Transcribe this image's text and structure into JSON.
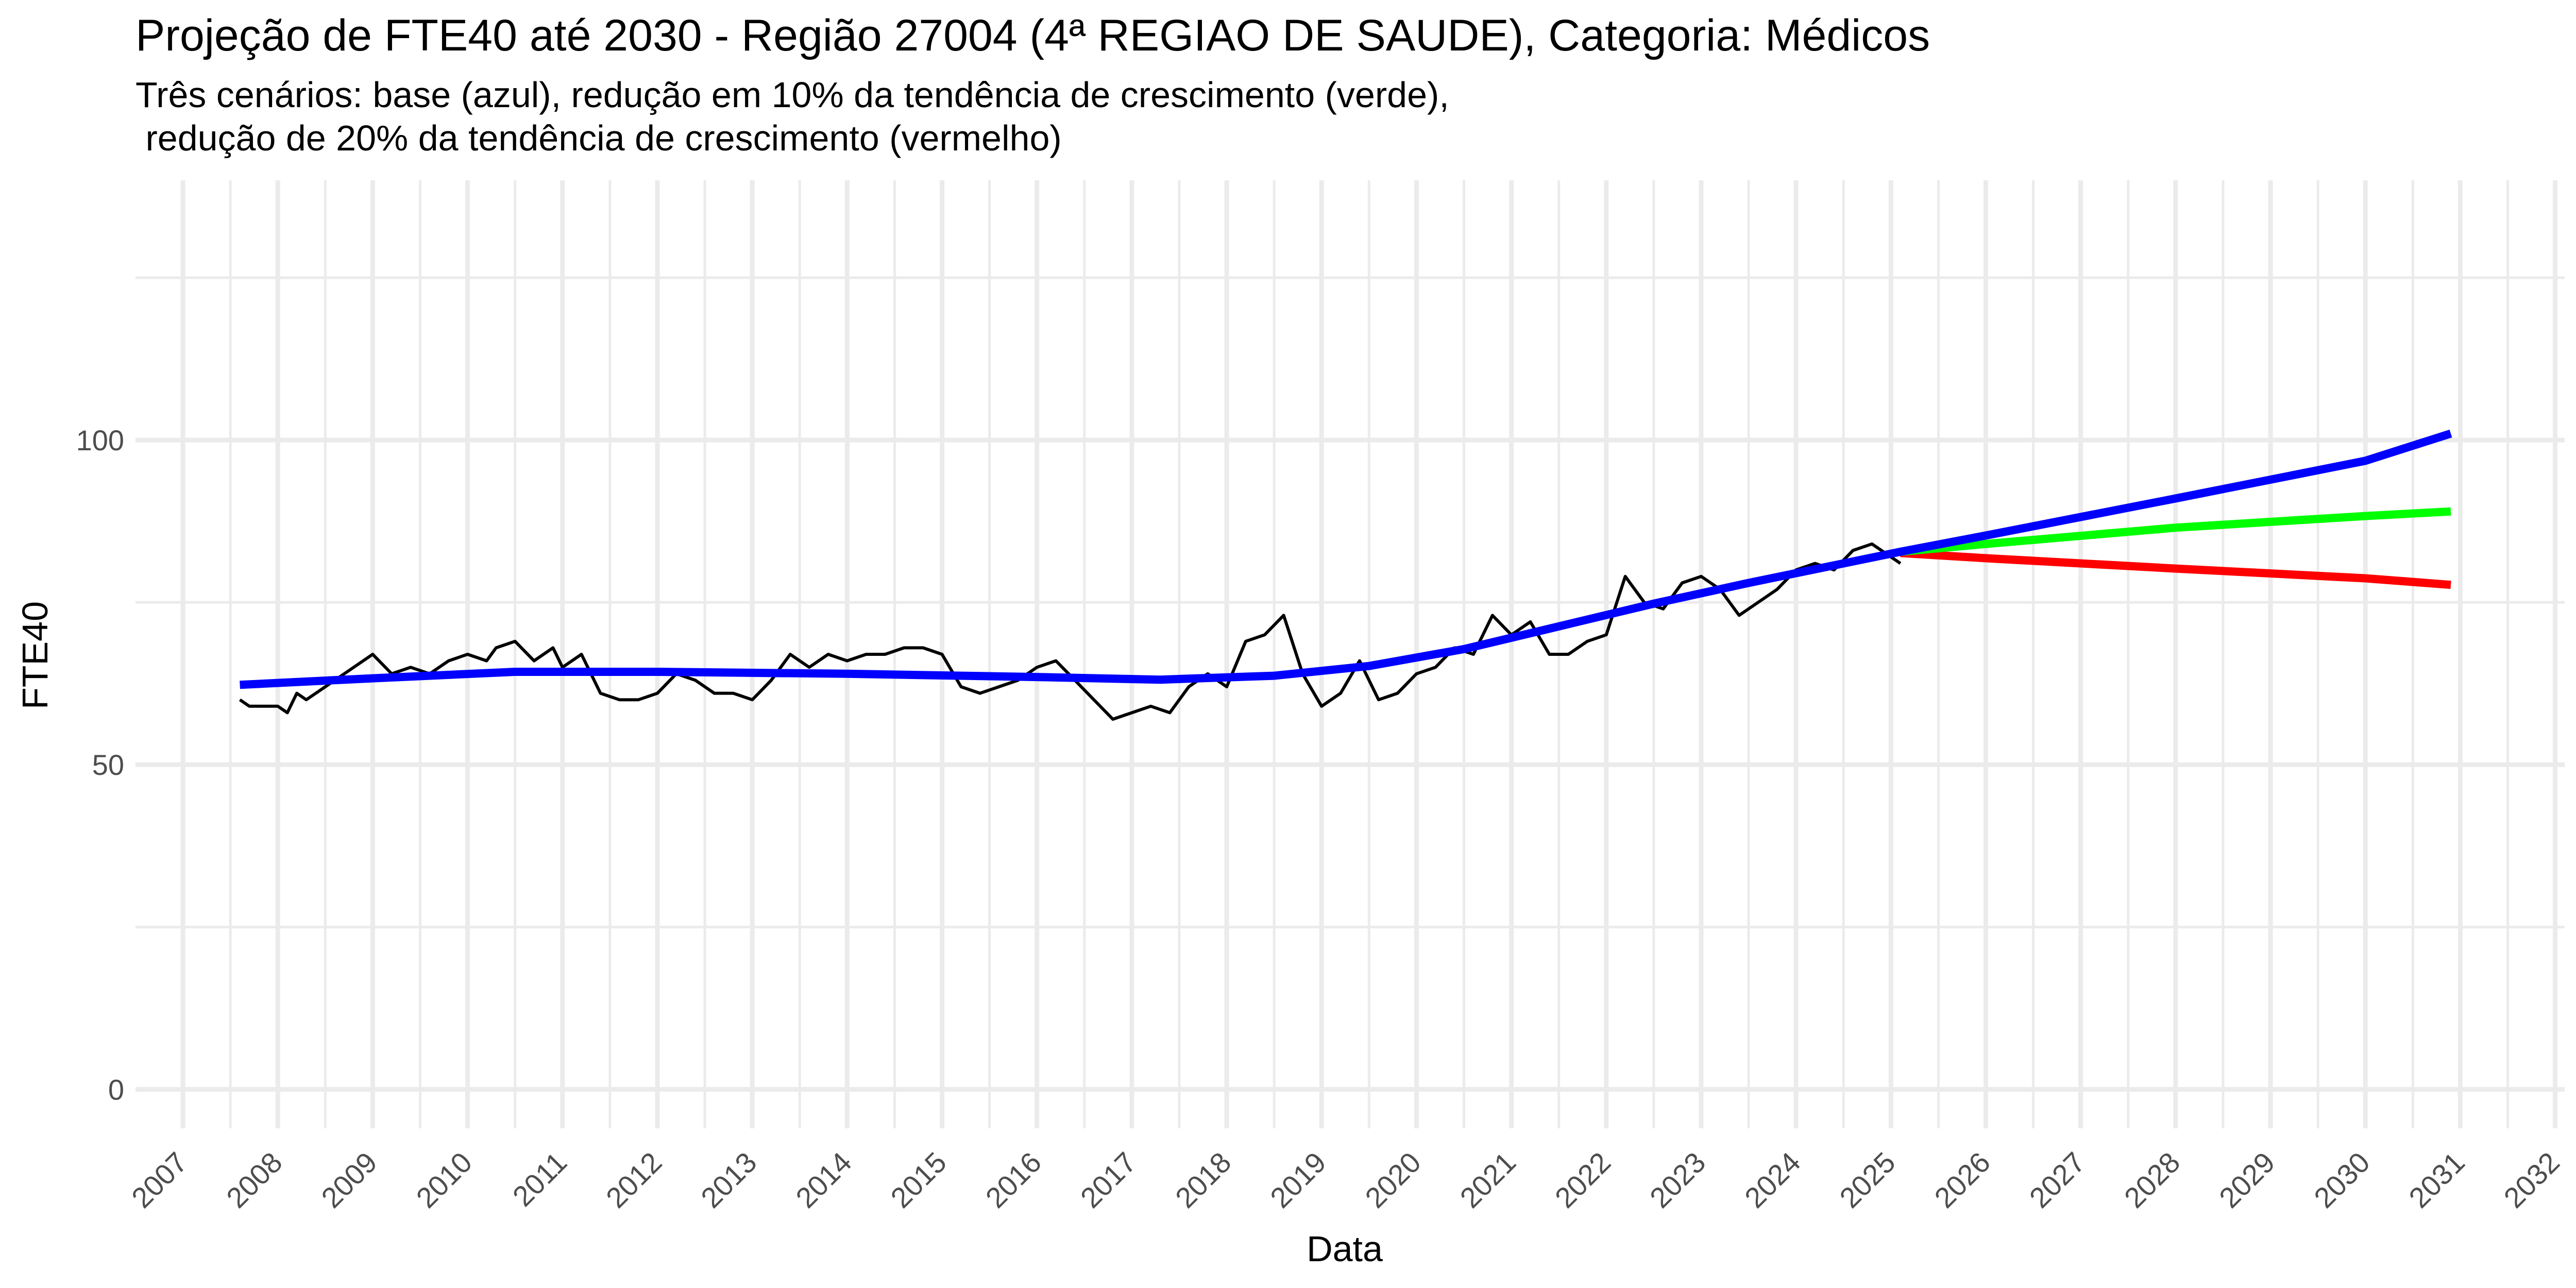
{
  "chart_data": {
    "type": "line",
    "title": "Projeção de FTE40 até 2030 - Região 27004 (4ª REGIAO DE SAUDE), Categoria: Médicos",
    "subtitle": "Três cenários: base (azul), redução em 10% da tendência de crescimento (verde),\n redução de 20% da tendência de crescimento (vermelho)",
    "xlabel": "Data",
    "ylabel": "FTE40",
    "xlim": [
      2006.5,
      2032.1
    ],
    "ylim": [
      -6,
      140
    ],
    "y_ticks": [
      0,
      50,
      100
    ],
    "y_minor": [
      25,
      75,
      125
    ],
    "x_ticks": [
      2007,
      2008,
      2009,
      2010,
      2011,
      2012,
      2013,
      2014,
      2015,
      2016,
      2017,
      2018,
      2019,
      2020,
      2021,
      2022,
      2023,
      2024,
      2025,
      2026,
      2027,
      2028,
      2029,
      2030,
      2031,
      2032
    ],
    "x_tick_labels": [
      "2007",
      "2008",
      "2009",
      "2010",
      "2011",
      "2012",
      "2013",
      "2014",
      "2015",
      "2016",
      "2017",
      "2018",
      "2019",
      "2020",
      "2021",
      "2022",
      "2023",
      "2024",
      "2025",
      "2026",
      "2027",
      "2028",
      "2029",
      "2030",
      "2031",
      "2032"
    ],
    "grid": true,
    "colors": {
      "observed": "#000000",
      "base": "#0000ff",
      "reduction_10": "#00ff00",
      "reduction_20": "#ff0000",
      "grid": "#ebebeb"
    },
    "series": [
      {
        "key": "observed",
        "x": [
          2007.6,
          2007.7,
          2007.8,
          2008.0,
          2008.1,
          2008.2,
          2008.3,
          2008.5,
          2008.7,
          2008.8,
          2009.0,
          2009.2,
          2009.4,
          2009.6,
          2009.8,
          2010.0,
          2010.2,
          2010.3,
          2010.5,
          2010.7,
          2010.9,
          2011.0,
          2011.2,
          2011.4,
          2011.6,
          2011.8,
          2012.0,
          2012.2,
          2012.4,
          2012.6,
          2012.8,
          2013.0,
          2013.2,
          2013.4,
          2013.6,
          2013.8,
          2014.0,
          2014.2,
          2014.4,
          2014.6,
          2014.8,
          2015.0,
          2015.2,
          2015.4,
          2015.6,
          2015.8,
          2016.0,
          2016.2,
          2016.4,
          2016.6,
          2016.8,
          2017.0,
          2017.2,
          2017.4,
          2017.6,
          2017.8,
          2018.0,
          2018.2,
          2018.4,
          2018.6,
          2018.8,
          2019.0,
          2019.2,
          2019.4,
          2019.6,
          2019.8,
          2020.0,
          2020.2,
          2020.4,
          2020.6,
          2020.8,
          2021.0,
          2021.2,
          2021.4,
          2021.6,
          2021.8,
          2022.0,
          2022.2,
          2022.4,
          2022.6,
          2022.8,
          2023.0,
          2023.2,
          2023.4,
          2023.6,
          2023.8,
          2024.0,
          2024.2,
          2024.4,
          2024.6,
          2024.8,
          2025.0,
          2025.1
        ],
        "y": [
          60,
          59,
          59,
          59,
          58,
          61,
          60,
          62,
          64,
          65,
          67,
          64,
          65,
          64,
          66,
          67,
          66,
          68,
          69,
          66,
          68,
          65,
          67,
          61,
          60,
          60,
          61,
          64,
          63,
          61,
          61,
          60,
          63,
          67,
          65,
          67,
          66,
          67,
          67,
          68,
          68,
          67,
          62,
          61,
          62,
          63,
          65,
          66,
          63,
          60,
          57,
          58,
          59,
          58,
          62,
          64,
          62,
          69,
          70,
          73,
          64,
          59,
          61,
          66,
          60,
          61,
          64,
          65,
          68,
          67,
          73,
          70,
          72,
          67,
          67,
          69,
          70,
          79,
          75,
          74,
          78,
          79,
          77,
          73,
          75,
          77,
          80,
          81,
          80,
          83,
          84,
          82,
          81
        ]
      },
      {
        "key": "base",
        "x": [
          2007.6,
          2009.0,
          2010.5,
          2012.0,
          2014.0,
          2016.0,
          2017.3,
          2018.5,
          2019.5,
          2020.5,
          2021.5,
          2022.5,
          2023.5,
          2024.5,
          2025.1,
          2026.0,
          2028.0,
          2030.0,
          2030.9
        ],
        "y": [
          62.3,
          63.3,
          64.3,
          64.3,
          64.0,
          63.5,
          63.1,
          63.7,
          65.2,
          67.8,
          71.3,
          74.8,
          78.0,
          81.0,
          82.8,
          85.3,
          91.0,
          96.8,
          101.0
        ]
      },
      {
        "key": "reduction_10",
        "x": [
          2025.1,
          2026.0,
          2028.0,
          2030.0,
          2030.9
        ],
        "y": [
          82.8,
          84.0,
          86.5,
          88.3,
          89.0
        ]
      },
      {
        "key": "reduction_20",
        "x": [
          2025.1,
          2026.0,
          2028.0,
          2030.0,
          2030.9
        ],
        "y": [
          82.6,
          81.8,
          80.2,
          78.7,
          77.7
        ]
      }
    ]
  }
}
